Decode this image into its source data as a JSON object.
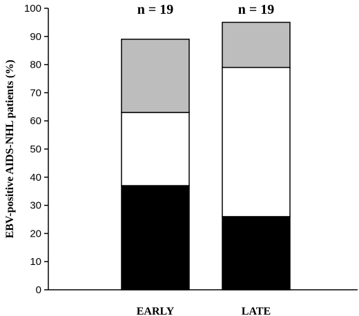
{
  "chart_data": {
    "type": "bar",
    "stacked": true,
    "categories": [
      "EARLY",
      "LATE"
    ],
    "series": [
      {
        "values": [
          37,
          26
        ],
        "color": "#000000"
      },
      {
        "values": [
          26,
          53
        ],
        "color": "#ffffff"
      },
      {
        "values": [
          26,
          16
        ],
        "color": "#bdbdbd"
      }
    ],
    "totals_labels": [
      "n = 19",
      "n = 19"
    ],
    "ylabel": "EBV-positive AIDS-NHL patients (%)",
    "xlabel": "",
    "ylim": [
      0,
      100
    ],
    "yticks": [
      0,
      10,
      20,
      30,
      40,
      50,
      60,
      70,
      80,
      90,
      100
    ],
    "grid": false
  }
}
